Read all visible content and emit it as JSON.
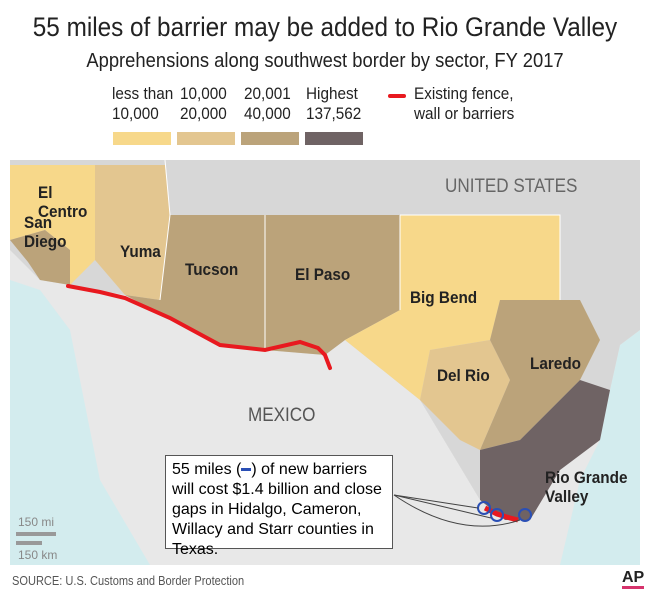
{
  "title": "55 miles of barrier may be added to Rio Grande Valley",
  "subtitle": "Apprehensions along southwest border by sector, FY 2017",
  "legend": {
    "bins": [
      {
        "l1": "less than",
        "l2": "10,000",
        "color": "#f7d88a"
      },
      {
        "l1": "10,000",
        "l2": "20,000",
        "color": "#e3c690"
      },
      {
        "l1": "20,001",
        "l2": "40,000",
        "color": "#bba37a"
      },
      {
        "l1": "Highest",
        "l2": "137,562",
        "color": "#6f6364"
      }
    ],
    "fence_l1": "Existing fence,",
    "fence_l2": "wall or barriers",
    "fence_color": "#e8191f"
  },
  "map": {
    "country_us": "UNITED STATES",
    "country_mx": "MEXICO",
    "sectors": {
      "san_diego": "San Diego",
      "el_centro": "El Centro",
      "yuma": "Yuma",
      "tucson": "Tucson",
      "el_paso": "El Paso",
      "big_bend": "Big Bend",
      "del_rio": "Del Rio",
      "laredo": "Laredo",
      "rgv": "Rio Grande Valley"
    },
    "new_barrier_color": "#2a4fb5",
    "scale_mi": "150 mi",
    "scale_km": "150 km"
  },
  "callout": {
    "pre": "55 miles (",
    "post": ") of new barriers will cost $1.4 billion and close gaps in Hidalgo, Cameron, Willacy and Starr counties in Texas."
  },
  "source": "SOURCE: U.S. Customs and Border Protection",
  "logo": "AP"
}
